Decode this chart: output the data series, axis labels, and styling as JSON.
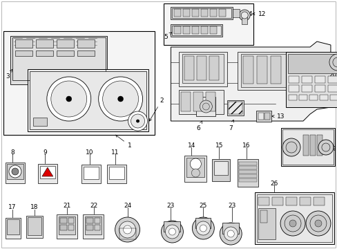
{
  "bg": "#ffffff",
  "lc": "#000000",
  "tc": "#000000",
  "fw": 4.89,
  "fh": 3.6,
  "dpi": 100,
  "fs": 6.5,
  "lw": 0.5,
  "gray1": "#cccccc",
  "gray2": "#aaaaaa",
  "gray3": "#888888",
  "gray4": "#555555",
  "ltgray": "#e8e8e8",
  "mdgray": "#d0d0d0",
  "dkgray": "#999999"
}
